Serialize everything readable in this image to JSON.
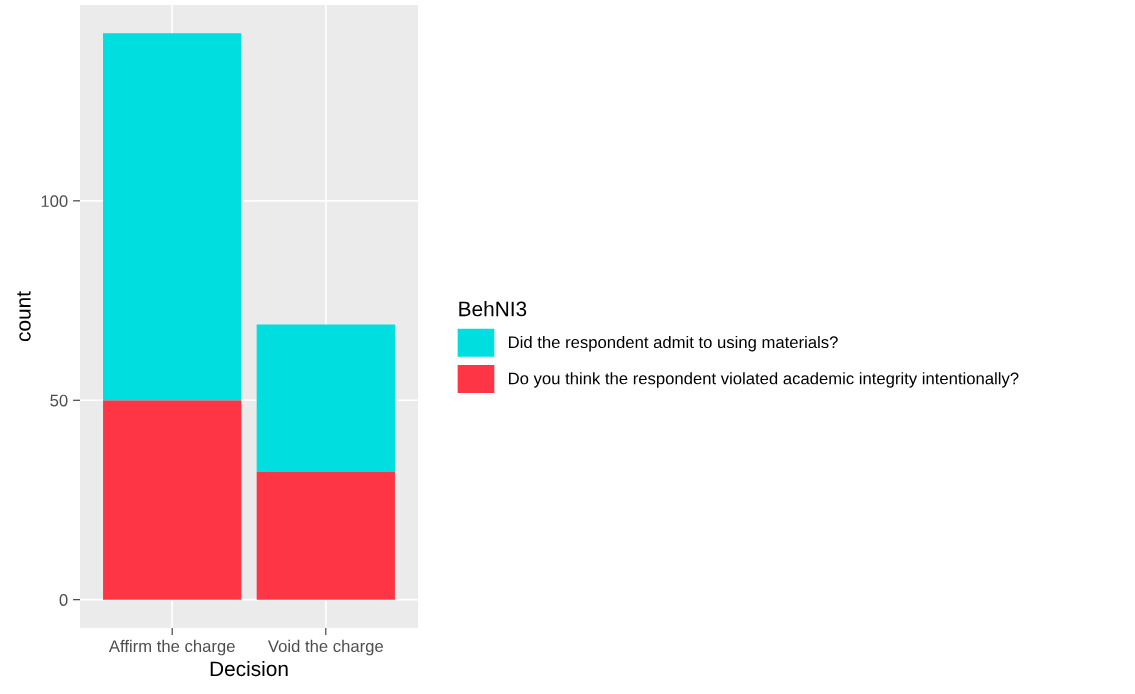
{
  "chart_data": {
    "type": "bar",
    "stacked": true,
    "xlabel": "Decision",
    "ylabel": "count",
    "legend_title": "BehNI3",
    "categories": [
      "Affirm the charge",
      "Void the charge"
    ],
    "series": [
      {
        "name": "Do you think the respondent violated academic integrity intentionally?",
        "color": "#fe3545",
        "values": [
          50,
          32
        ]
      },
      {
        "name": "Did the respondent admit to using materials?",
        "color": "#00dedf",
        "values": [
          92,
          37
        ]
      }
    ],
    "ylim": [
      -7.1,
      149.1
    ],
    "yticks": [
      0,
      50,
      100
    ],
    "grid": true,
    "legend": "right"
  }
}
